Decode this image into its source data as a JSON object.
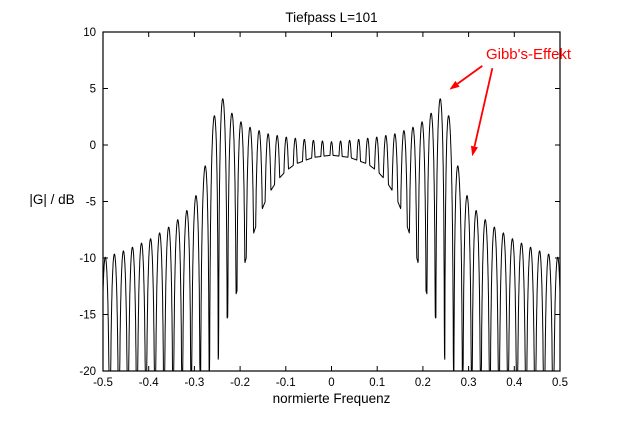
{
  "chart_data": {
    "type": "line",
    "title": "Tiefpass L=101",
    "xlabel": "normierte Frequenz",
    "ylabel": "|G| / dB",
    "xlim": [
      -0.5,
      0.5
    ],
    "ylim": [
      -20,
      10
    ],
    "xticks": [
      -0.5,
      -0.4,
      -0.3,
      -0.2,
      -0.1,
      0,
      0.1,
      0.2,
      0.3,
      0.4,
      0.5
    ],
    "xtick_labels": [
      "-0.5",
      "-0.4",
      "-0.3",
      "-0.2",
      "-0.1",
      "0",
      "0.1",
      "0.2",
      "0.3",
      "0.4",
      "0.5"
    ],
    "yticks": [
      -20,
      -15,
      -10,
      -5,
      0,
      5,
      10
    ],
    "ytick_labels": [
      "-20",
      "-15",
      "-10",
      "-5",
      "0",
      "5",
      "10"
    ],
    "grid": false,
    "line_color": "#000000",
    "axis_color": "#000000",
    "background_color": "#ffffff",
    "series_model": {
      "description": "Magnitude response |G| in dB of an FIR lowpass of length 101 showing Gibbs ripple; rapid ripple lobes with nulls, symmetric about f=0; upper/lower envelopes read from the plot",
      "filter_length": 101,
      "cutoff_frequency": 0.25,
      "ripple_period": 0.0198,
      "overshoot_peak_db": 4.6,
      "stopband_edge_level_db": -5,
      "stopband_far_level_db": -10,
      "envelope_upper_db": [
        [
          0,
          0.3
        ],
        [
          0.05,
          0.45
        ],
        [
          0.1,
          0.7
        ],
        [
          0.14,
          1.0
        ],
        [
          0.18,
          1.6
        ],
        [
          0.2,
          2.1
        ],
        [
          0.22,
          2.9
        ],
        [
          0.235,
          3.9
        ],
        [
          0.245,
          4.6
        ],
        [
          0.252,
          3.8
        ],
        [
          0.26,
          1.8
        ],
        [
          0.27,
          -0.5
        ],
        [
          0.28,
          -2.5
        ],
        [
          0.29,
          -3.8
        ],
        [
          0.3,
          -4.8
        ],
        [
          0.32,
          -6.0
        ],
        [
          0.35,
          -7.1
        ],
        [
          0.4,
          -8.4
        ],
        [
          0.45,
          -9.3
        ],
        [
          0.5,
          -10.0
        ]
      ],
      "envelope_lower_db": [
        [
          0,
          -0.9
        ],
        [
          0.04,
          -1.1
        ],
        [
          0.08,
          -1.7
        ],
        [
          0.1,
          -2.3
        ],
        [
          0.12,
          -3.2
        ],
        [
          0.14,
          -4.5
        ],
        [
          0.16,
          -6.5
        ],
        [
          0.18,
          -9.0
        ],
        [
          0.2,
          -12.0
        ],
        [
          0.215,
          -14.0
        ],
        [
          0.23,
          -15.5
        ],
        [
          0.245,
          -17.0
        ],
        [
          0.255,
          -24.0
        ],
        [
          0.3,
          -24.0
        ],
        [
          0.5,
          -24.0
        ]
      ]
    },
    "annotation": {
      "label": "Gibb's-Effekt",
      "color": "#ff0000",
      "text_position": {
        "f": 0.338,
        "db": 8.8
      },
      "arrows": [
        {
          "from": {
            "f": 0.33,
            "db": 7.0
          },
          "to": {
            "f": 0.258,
            "db": 4.9
          }
        },
        {
          "from": {
            "f": 0.352,
            "db": 6.8
          },
          "to": {
            "f": 0.308,
            "db": -1.0
          }
        }
      ]
    }
  }
}
